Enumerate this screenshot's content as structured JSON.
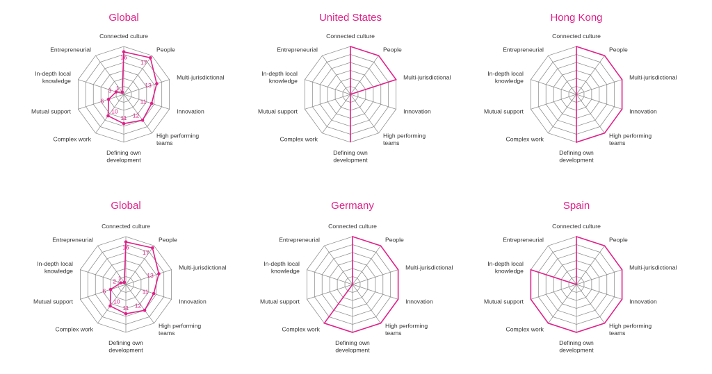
{
  "colors": {
    "accent": "#e0218a",
    "grid": "#8f8f8f",
    "text": "#333333"
  },
  "chart_data": [
    {
      "type": "radar",
      "title": "Global",
      "axes": [
        "Connected culture",
        "People",
        "Multi-jurisdictional",
        "Innovation",
        "High performing teams",
        "Defining own development",
        "Complex work",
        "Mutual support",
        "In-depth local knowledge",
        "Entrepreneurial"
      ],
      "rings": 6,
      "series": [
        {
          "values": [
            16,
            17,
            13,
            11,
            12,
            11,
            10,
            6,
            3,
            1
          ],
          "rmax": 18,
          "point_labels": [
            "16",
            "17",
            "13",
            "11",
            "12",
            "11",
            "10",
            "6",
            "3",
            "1"
          ]
        }
      ],
      "grid": true
    },
    {
      "type": "radar",
      "title": "United States",
      "axes": [
        "Connected culture",
        "People",
        "Multi-jurisdictional",
        "Innovation",
        "High performing teams",
        "Defining own development",
        "Complex work",
        "Mutual support",
        "In-depth local knowledge",
        "Entrepreneurial"
      ],
      "rings": 6,
      "series": [
        {
          "values": [
            6,
            6,
            6,
            0,
            0,
            6,
            0,
            0,
            0,
            0
          ],
          "rmax": 6
        }
      ],
      "grid": true
    },
    {
      "type": "radar",
      "title": "Hong Kong",
      "axes": [
        "Connected culture",
        "People",
        "Multi-jurisdictional",
        "Innovation",
        "High performing teams",
        "Defining own development",
        "Complex work",
        "Mutual support",
        "In-depth local knowledge",
        "Entrepreneurial"
      ],
      "rings": 6,
      "series": [
        {
          "values": [
            6,
            6,
            6,
            6,
            6,
            6,
            0,
            0,
            0,
            0
          ],
          "rmax": 6
        }
      ],
      "grid": true
    },
    {
      "type": "radar",
      "title": "Global",
      "axes": [
        "Connected culture",
        "People",
        "Multi-jurisdictional",
        "Innovation",
        "High performing teams",
        "Defining own development",
        "Complex work",
        "Mutual support",
        "In-depth local knowledge",
        "Entrepreneurial"
      ],
      "rings": 6,
      "series": [
        {
          "values": [
            16,
            17,
            13,
            11,
            12,
            11,
            10,
            6,
            2,
            1
          ],
          "rmax": 18,
          "point_labels": [
            "16",
            "17",
            "13",
            "11",
            "12",
            "11",
            "10",
            "6",
            "2",
            "1"
          ]
        }
      ],
      "grid": true
    },
    {
      "type": "radar",
      "title": "Germany",
      "axes": [
        "Connected culture",
        "People",
        "Multi-jurisdictional",
        "Innovation",
        "High performing teams",
        "Defining own development",
        "Complex work",
        "Mutual support",
        "In-depth local knowledge",
        "Entrepreneurial"
      ],
      "rings": 6,
      "series": [
        {
          "values": [
            6,
            6,
            6,
            6,
            6,
            6,
            6,
            0,
            0,
            0
          ],
          "rmax": 6
        }
      ],
      "grid": true
    },
    {
      "type": "radar",
      "title": "Spain",
      "axes": [
        "Connected culture",
        "People",
        "Multi-jurisdictional",
        "Innovation",
        "High performing teams",
        "Defining own development",
        "Complex work",
        "Mutual support",
        "In-depth local knowledge",
        "Entrepreneurial"
      ],
      "rings": 6,
      "series": [
        {
          "values": [
            6,
            6,
            6,
            6,
            6,
            6,
            6,
            6,
            6,
            0
          ],
          "rmax": 6
        }
      ],
      "grid": true
    }
  ]
}
